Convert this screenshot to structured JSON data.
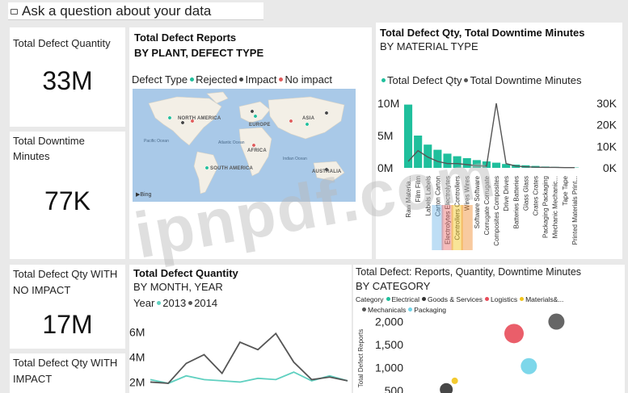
{
  "qa": {
    "placeholder": "Ask a question about your data",
    "icon": "chat-bubble-icon"
  },
  "cards": {
    "defect_qty": {
      "title": "Total Defect Quantity",
      "value": "33M"
    },
    "downtime": {
      "title": "Total Downtime Minutes",
      "value": "77K"
    },
    "no_impact": {
      "title": "Total Defect Qty WITH NO IMPACT",
      "value": "17M"
    },
    "with_impact": {
      "title": "Total Defect Qty WITH IMPACT"
    }
  },
  "map": {
    "title": "Total Defect Reports",
    "subtitle": "BY PLANT, DEFECT TYPE",
    "legend_title": "Defect Type",
    "legend": [
      "Rejected",
      "Impact",
      "No impact"
    ],
    "colors": [
      "#1fbf9c",
      "#444444",
      "#e05a5a"
    ],
    "labels": {
      "na": "NORTH AMERICA",
      "eu": "EUROPE",
      "as": "ASIA",
      "af": "AFRICA",
      "sa": "SOUTH AMERICA",
      "au": "AUSTRALIA",
      "pac": "Pacific Ocean",
      "atl": "Atlantic Ocean",
      "ind": "Indian Ocean"
    },
    "bing": "Bing"
  },
  "material": {
    "title": "Total Defect Qty, Total Downtime Minutes",
    "subtitle": "BY MATERIAL TYPE",
    "legend": [
      "Total Defect Qty",
      "Total Downtime Minutes"
    ],
    "colors": [
      "#1fbf9c",
      "#555555"
    ]
  },
  "month": {
    "title": "Total Defect Quantity",
    "subtitle": "BY MONTH, YEAR",
    "legend_title": "Year",
    "legend": [
      "2013",
      "2014"
    ],
    "colors": [
      "#5fd0c0",
      "#555555"
    ]
  },
  "category": {
    "title": "Total Defect: Reports, Quantity, Downtime Minutes",
    "subtitle": "BY CATEGORY",
    "legend_title": "Category",
    "legend": [
      "Electrical",
      "Goods & Services",
      "Logistics",
      "Materials&...",
      "Mechanicals",
      "Packaging"
    ],
    "colors": [
      "#1fbf9c",
      "#333333",
      "#e84c5a",
      "#f2c419",
      "#555555",
      "#6fd3e8"
    ]
  },
  "watermark": "ipnpdf.com",
  "chart_data": [
    {
      "type": "bar",
      "title": "Total Defect Qty, Total Downtime Minutes BY MATERIAL TYPE",
      "categories": [
        "Raw Materia...",
        "Film",
        "Labels",
        "Carton",
        "Electrolytes",
        "Controllers",
        "Wires",
        "Software",
        "Corrugate",
        "Composites",
        "Drive",
        "Batteries",
        "Glass",
        "Crates",
        "Packaging",
        "Mechanic...",
        "Tape",
        "Printed Materials Print..."
      ],
      "x_tick_labels": [
        "Raw Materia...",
        "Film Film",
        "Labels Labels",
        "Carton Carton",
        "Electrolytes Electrolytes",
        "Controllers Controllers",
        "Wires Wires",
        "Software Software",
        "Corrugate Corrugate",
        "Composites Composites",
        "Drive Drives",
        "Batteries Batteries",
        "Glass Glass",
        "Crates Crates",
        "Packaging Packaging",
        "Mechanic Mechanic...",
        "Tape Tape",
        "Printed Materials Print..."
      ],
      "series": [
        {
          "name": "Total Defect Qty",
          "axis": "left",
          "values": [
            9.8,
            5.0,
            3.6,
            2.8,
            2.2,
            1.8,
            1.5,
            1.2,
            1.0,
            0.8,
            0.6,
            0.5,
            0.4,
            0.3,
            0.2,
            0.15,
            0.1,
            0.05
          ]
        },
        {
          "name": "Total Downtime Minutes",
          "axis": "right",
          "values": [
            3,
            8,
            5,
            3,
            2,
            2,
            1.5,
            1,
            0.8,
            30,
            2,
            0.8,
            0.5,
            0.3,
            0.2,
            0.2,
            0.1,
            0.1
          ]
        }
      ],
      "yticks_left": [
        "0M",
        "5M",
        "10M"
      ],
      "yticks_right": [
        "0K",
        "10K",
        "20K",
        "30K"
      ],
      "ylim_left": [
        0,
        11
      ],
      "ylim_right": [
        0,
        33
      ],
      "units": "left axis millions, right axis thousands"
    },
    {
      "type": "line",
      "title": "Total Defect Quantity BY MONTH, YEAR",
      "yticks": [
        "2M",
        "4M",
        "6M"
      ],
      "ylim": [
        1.9,
        6.5
      ],
      "series": [
        {
          "name": "2013",
          "values": [
            2.2,
            1.9,
            2.5,
            2.2,
            2.1,
            2.0,
            2.3,
            2.2,
            2.8,
            2.1,
            2.5,
            2.1
          ]
        },
        {
          "name": "2014",
          "values": [
            2.0,
            1.9,
            3.5,
            4.2,
            2.7,
            5.2,
            4.6,
            5.9,
            3.6,
            2.2,
            2.4,
            2.1
          ]
        }
      ]
    },
    {
      "type": "scatter",
      "title": "Total Defect: Reports, Quantity, Downtime Minutes BY CATEGORY",
      "ylabel": "Total Defect Reports",
      "yticks": [
        "500",
        "1,000",
        "1,500",
        "2,000"
      ],
      "ylim": [
        480,
        2150
      ],
      "points": [
        {
          "category": "Mechanicals",
          "x": 0.7,
          "y": 2000,
          "size": 10
        },
        {
          "category": "Logistics",
          "x": 0.5,
          "y": 1740,
          "size": 12
        },
        {
          "category": "Packaging",
          "x": 0.57,
          "y": 1030,
          "size": 10
        },
        {
          "category": "Materials&...",
          "x": 0.22,
          "y": 710,
          "size": 4
        },
        {
          "category": "Goods & Services",
          "x": 0.18,
          "y": 520,
          "size": 8
        }
      ]
    }
  ]
}
